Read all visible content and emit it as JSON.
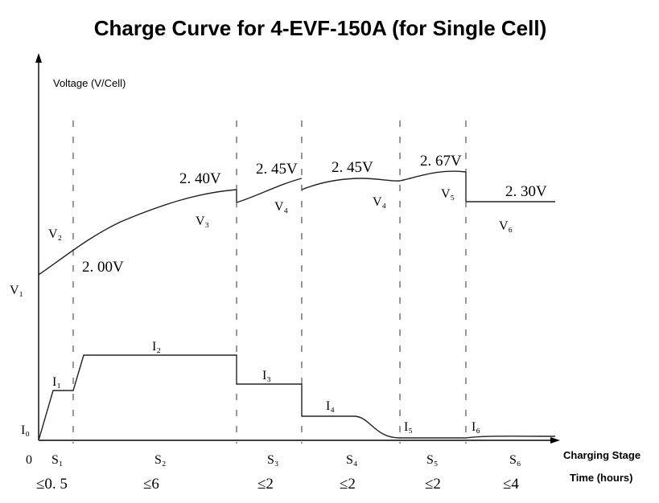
{
  "chart_data": {
    "type": "line",
    "title": "Charge Curve for 4-EVF-150A (for Single Cell)",
    "ylabel": "Voltage (V/Cell)",
    "xlabels": [
      "Charging Stage",
      "Time (hours)"
    ],
    "origin_label": "0",
    "voltage_axis_label": "V₁",
    "current_axis_label": "I₀",
    "stages": [
      {
        "name": "S₁",
        "time": "≤0. 5"
      },
      {
        "name": "S₂",
        "time": "≤6"
      },
      {
        "name": "S₃",
        "time": "≤2"
      },
      {
        "name": "S₄",
        "time": "≤2"
      },
      {
        "name": "S₅",
        "time": "≤2"
      },
      {
        "name": "S₆",
        "time": "≤4"
      }
    ],
    "voltage_curve_labels": [
      "V₂",
      "V₃",
      "V₄",
      "V₄",
      "V₅",
      "V₆"
    ],
    "voltage_values": [
      "2. 00V",
      "2. 40V",
      "2. 45V",
      "2. 45V",
      "2. 67V",
      "2. 30V"
    ],
    "current_labels": [
      "I₁",
      "I₂",
      "I₃",
      "I₄",
      "I₅",
      "I₆"
    ],
    "colors": {
      "line": "#222222",
      "background": "#ffffff"
    }
  }
}
